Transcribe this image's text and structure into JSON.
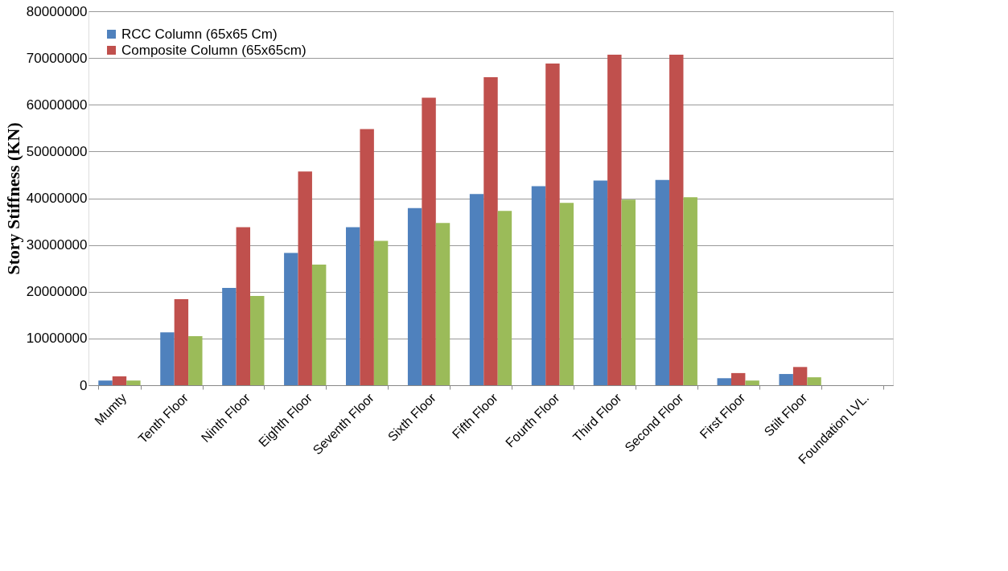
{
  "chart_data": {
    "type": "bar",
    "ylabel": "Story Stiffness (KN)",
    "categories": [
      "Mumty",
      "Tenth Floor",
      "Ninth Floor",
      "Eighth Floor",
      "Seventh Floor",
      "Sixth Floor",
      "Fifth Floor",
      "Fourth Floor",
      "Third Floor",
      "Second Floor",
      "First Floor",
      "Stilt Floor",
      "Foundation LVL."
    ],
    "series": [
      {
        "name": "RCC Column            (65x65 Cm)",
        "color": "#4f81bd",
        "values": [
          1000000,
          11300000,
          20800000,
          28300000,
          33800000,
          37900000,
          40900000,
          42600000,
          43800000,
          43900000,
          1500000,
          2400000,
          0
        ]
      },
      {
        "name": "Composite Column (65x65cm)",
        "color": "#c0504d",
        "values": [
          1900000,
          18400000,
          33800000,
          45700000,
          54800000,
          61500000,
          65900000,
          68800000,
          70700000,
          70700000,
          2600000,
          3900000,
          0
        ]
      },
      {
        "color": "#9bbb59",
        "values": [
          1000000,
          10500000,
          19100000,
          25800000,
          30900000,
          34700000,
          37300000,
          39000000,
          39700000,
          40200000,
          1000000,
          1700000,
          0
        ]
      }
    ],
    "ylim": [
      0,
      80000000
    ],
    "yticks": [
      0,
      10000000,
      20000000,
      30000000,
      40000000,
      50000000,
      60000000,
      70000000,
      80000000
    ],
    "grid": "y",
    "legend": "top left"
  }
}
